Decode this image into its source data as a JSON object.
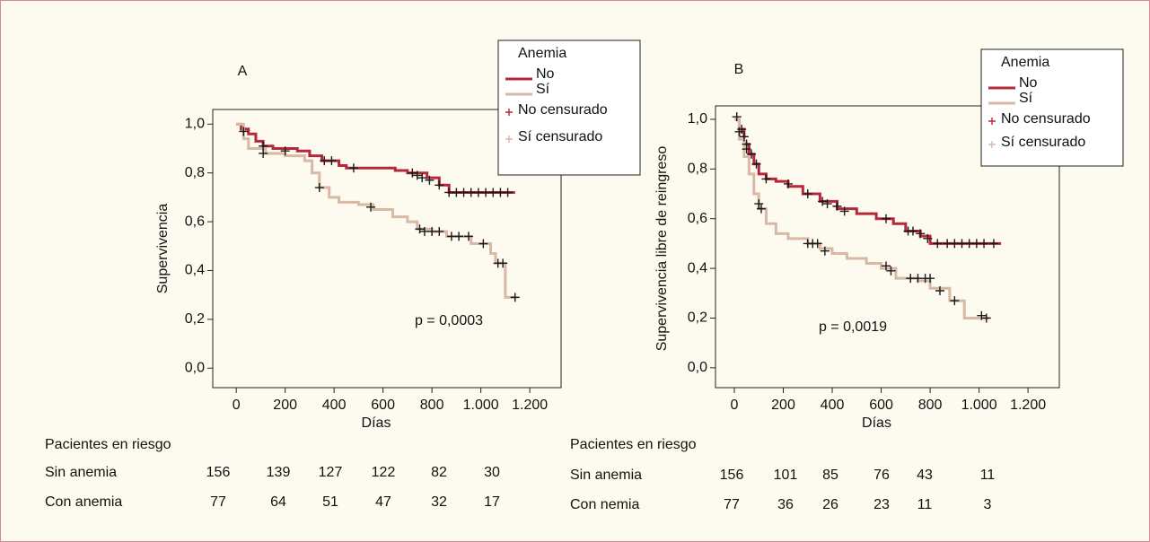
{
  "chart_data": [
    {
      "type": "step",
      "label": "A",
      "legend_title": "Anemia",
      "annotation": "p = 0,0003",
      "x_label": "Días",
      "y_label": "Supervivencia",
      "xlim": [
        -96,
        1328
      ],
      "ylim": [
        -0.08,
        1.06
      ],
      "xticks": [
        0,
        200,
        400,
        600,
        800,
        {
          "value": 1000,
          "label": "1.000"
        },
        {
          "value": 1200,
          "label": "1.200"
        }
      ],
      "yticks": [
        {
          "value": 0,
          "label": "0,0"
        },
        {
          "value": 0.2,
          "label": "0,2"
        },
        {
          "value": 0.4,
          "label": "0,4"
        },
        {
          "value": 0.6,
          "label": "0,6"
        },
        {
          "value": 0.8,
          "label": "0,8"
        },
        {
          "value": 1,
          "label": "1,0"
        }
      ],
      "series": [
        {
          "name": "No",
          "color": "#b5283a",
          "x": [
            0,
            20,
            50,
            80,
            110,
            150,
            250,
            300,
            350,
            420,
            450,
            650,
            700,
            780,
            830,
            870,
            1140
          ],
          "values": [
            1.0,
            0.98,
            0.96,
            0.93,
            0.91,
            0.9,
            0.89,
            0.87,
            0.85,
            0.83,
            0.82,
            0.81,
            0.8,
            0.78,
            0.75,
            0.72,
            0.72
          ]
        },
        {
          "name": "Sí",
          "color": "#d8b9a5",
          "x": [
            0,
            30,
            50,
            120,
            200,
            280,
            310,
            340,
            380,
            420,
            500,
            560,
            640,
            700,
            740,
            800,
            860,
            960,
            1040,
            1060,
            1100,
            1140
          ],
          "values": [
            1.0,
            0.94,
            0.9,
            0.88,
            0.87,
            0.85,
            0.8,
            0.74,
            0.7,
            0.68,
            0.67,
            0.65,
            0.62,
            0.6,
            0.57,
            0.56,
            0.54,
            0.51,
            0.47,
            0.43,
            0.29,
            0.29
          ]
        },
        {
          "name": "No censurado",
          "color": "#b5283a",
          "marker": "+",
          "x": [
            30,
            110,
            200,
            360,
            390,
            480,
            720,
            740,
            760,
            790,
            830,
            870,
            900,
            930,
            960,
            990,
            1020,
            1050,
            1080,
            1110
          ],
          "values": [
            0.97,
            0.91,
            0.89,
            0.85,
            0.85,
            0.82,
            0.8,
            0.79,
            0.78,
            0.77,
            0.75,
            0.72,
            0.72,
            0.72,
            0.72,
            0.72,
            0.72,
            0.72,
            0.72,
            0.72
          ]
        },
        {
          "name": "Sí censurado",
          "color": "#d8b9a5",
          "marker": "+",
          "x": [
            110,
            340,
            550,
            750,
            770,
            800,
            830,
            880,
            910,
            950,
            1010,
            1070,
            1090,
            1140
          ],
          "values": [
            0.88,
            0.74,
            0.66,
            0.57,
            0.56,
            0.56,
            0.56,
            0.54,
            0.54,
            0.54,
            0.51,
            0.43,
            0.43,
            0.29
          ]
        }
      ],
      "risk_table": {
        "title": "Pacientes en riesgo",
        "rows": [
          {
            "label": "Sin anemia",
            "values": [
              156,
              139,
              127,
              122,
              82,
              30
            ]
          },
          {
            "label": "Con anemia",
            "values": [
              77,
              64,
              51,
              47,
              32,
              17
            ]
          }
        ]
      }
    },
    {
      "type": "step",
      "label": "B",
      "legend_title": "Anemia",
      "annotation": "p = 0,0019",
      "x_label": "Días",
      "y_label": "Supervivencia libre de reingreso",
      "xlim": [
        -77,
        1328
      ],
      "ylim": [
        -0.08,
        1.054
      ],
      "xticks": [
        0,
        200,
        400,
        600,
        800,
        {
          "value": 1000,
          "label": "1.000"
        },
        {
          "value": 1200,
          "label": "1.200"
        }
      ],
      "yticks": [
        {
          "value": 0,
          "label": "0,0"
        },
        {
          "value": 0.2,
          "label": "0,2"
        },
        {
          "value": 0.4,
          "label": "0,4"
        },
        {
          "value": 0.6,
          "label": "0,6"
        },
        {
          "value": 0.8,
          "label": "0,8"
        },
        {
          "value": 1,
          "label": "1,0"
        }
      ],
      "series": [
        {
          "name": "No",
          "color": "#b5283a",
          "x": [
            0,
            20,
            40,
            60,
            80,
            100,
            130,
            170,
            220,
            280,
            350,
            420,
            500,
            580,
            650,
            700,
            760,
            800,
            1090
          ],
          "values": [
            1.0,
            0.96,
            0.9,
            0.86,
            0.82,
            0.78,
            0.76,
            0.75,
            0.73,
            0.7,
            0.67,
            0.64,
            0.62,
            0.6,
            0.58,
            0.55,
            0.53,
            0.5,
            0.5
          ]
        },
        {
          "name": "Sí",
          "color": "#d8b9a5",
          "x": [
            0,
            20,
            40,
            60,
            80,
            100,
            130,
            170,
            220,
            300,
            350,
            400,
            460,
            540,
            600,
            660,
            750,
            800,
            880,
            940,
            1040
          ],
          "values": [
            1.0,
            0.92,
            0.85,
            0.78,
            0.7,
            0.64,
            0.58,
            0.54,
            0.52,
            0.5,
            0.48,
            0.46,
            0.44,
            0.42,
            0.4,
            0.36,
            0.35,
            0.32,
            0.27,
            0.2,
            0.2
          ]
        },
        {
          "name": "No censurado",
          "color": "#b5283a",
          "marker": "+",
          "x": [
            10,
            30,
            50,
            70,
            90,
            130,
            220,
            300,
            360,
            380,
            420,
            450,
            620,
            710,
            730,
            760,
            790,
            830,
            870,
            900,
            930,
            960,
            990,
            1020,
            1060
          ],
          "values": [
            1.01,
            0.96,
            0.9,
            0.86,
            0.82,
            0.76,
            0.74,
            0.7,
            0.67,
            0.66,
            0.65,
            0.63,
            0.6,
            0.55,
            0.55,
            0.54,
            0.52,
            0.5,
            0.5,
            0.5,
            0.5,
            0.5,
            0.5,
            0.5,
            0.5
          ]
        },
        {
          "name": "Sí censurado",
          "color": "#d8b9a5",
          "marker": "+",
          "x": [
            20,
            40,
            50,
            100,
            110,
            300,
            320,
            340,
            370,
            620,
            640,
            720,
            750,
            780,
            800,
            840,
            900,
            1010,
            1030
          ],
          "values": [
            0.95,
            0.93,
            0.88,
            0.66,
            0.64,
            0.5,
            0.5,
            0.5,
            0.47,
            0.41,
            0.39,
            0.36,
            0.36,
            0.36,
            0.36,
            0.31,
            0.27,
            0.21,
            0.2
          ]
        }
      ],
      "risk_table": {
        "title": "Pacientes en riesgo",
        "rows": [
          {
            "label": "Sin anemia",
            "values": [
              156,
              101,
              85,
              76,
              43,
              11
            ]
          },
          {
            "label": "Con nemia",
            "values": [
              77,
              36,
              26,
              23,
              11,
              3
            ]
          }
        ]
      }
    }
  ]
}
